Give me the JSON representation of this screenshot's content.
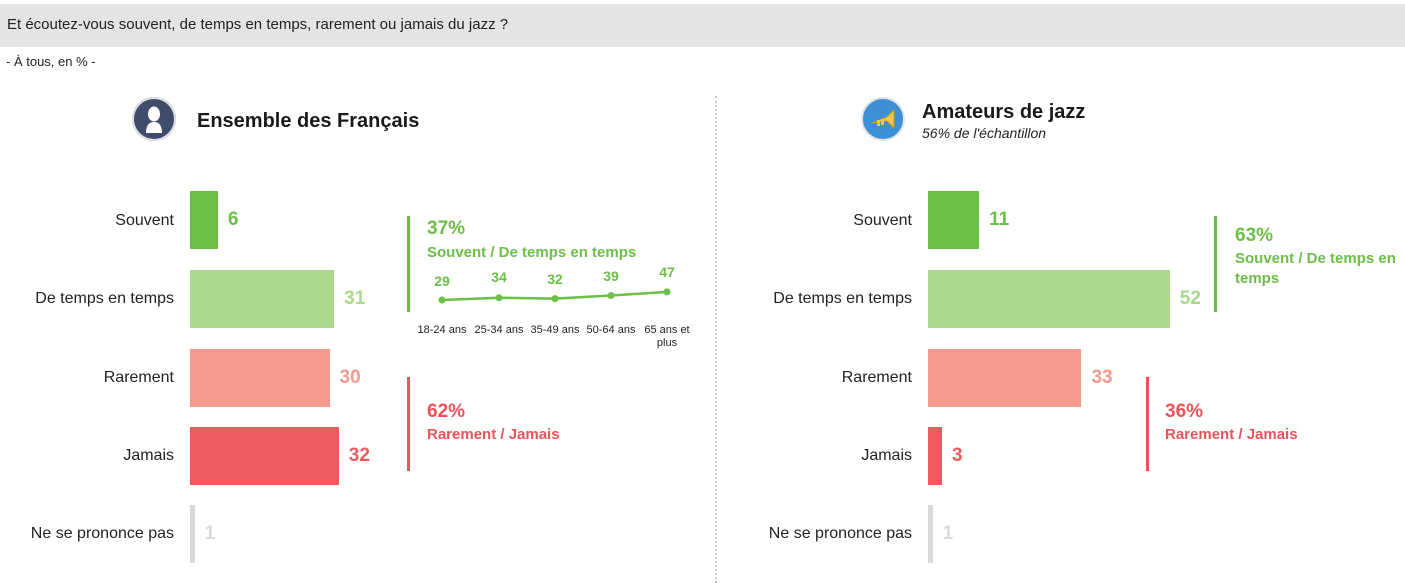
{
  "header": {
    "question": "Et écoutez-vous souvent, de temps en temps, rarement ou jamais du jazz ?",
    "base": "- À tous, en % -"
  },
  "colors": {
    "souvent": "#6cbf47",
    "de_temps": "#aad98e",
    "rarement": "#f59a8c",
    "jamais": "#f05a5e",
    "nsp": "#d9d9d9",
    "green_text": "#6cbf47",
    "red_text": "#e8545a"
  },
  "chart_data": [
    {
      "type": "bar",
      "title": "Ensemble des Français",
      "icon": "person-icon",
      "categories": [
        "Souvent",
        "De temps en temps",
        "Rarement",
        "Jamais",
        "Ne se prononce pas"
      ],
      "values": [
        6,
        31,
        30,
        32,
        1
      ],
      "groups": [
        {
          "value": "37%",
          "label": "Souvent / De temps en temps"
        },
        {
          "value": "62%",
          "label": "Rarement / Jamais"
        }
      ],
      "age_breakdown": {
        "type": "line",
        "categories": [
          "18-24 ans",
          "25-34 ans",
          "35-49 ans",
          "50-64 ans",
          "65 ans et plus"
        ],
        "values": [
          29,
          34,
          32,
          39,
          47
        ]
      }
    },
    {
      "type": "bar",
      "title": "Amateurs de jazz",
      "subtitle": "56% de l'échantillon",
      "icon": "trumpet-icon",
      "categories": [
        "Souvent",
        "De temps en temps",
        "Rarement",
        "Jamais",
        "Ne se prononce pas"
      ],
      "values": [
        11,
        52,
        33,
        3,
        1
      ],
      "groups": [
        {
          "value": "63%",
          "label": "Souvent / De temps en temps"
        },
        {
          "value": "36%",
          "label": "Rarement / Jamais"
        }
      ]
    }
  ]
}
